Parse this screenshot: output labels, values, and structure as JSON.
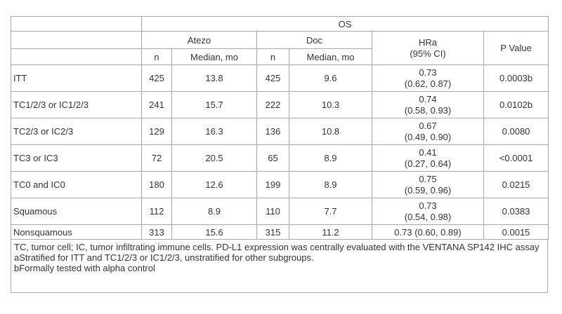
{
  "header": {
    "os": "OS",
    "atezo": "Atezo",
    "doc": "Doc",
    "hr_line1": "HRa",
    "hr_line2": "(95% CI)",
    "p_value": "P Value",
    "n1": "n",
    "median1": "Median, mo",
    "n2": "n",
    "median2": "Median, mo"
  },
  "rows": [
    {
      "label": "ITT",
      "atezo_n": "425",
      "atezo_median": "13.8",
      "doc_n": "425",
      "doc_median": "9.6",
      "hr": "0.73",
      "ci": "(0.62, 0.87)",
      "p": "0.0003b"
    },
    {
      "label": "TC1/2/3 or IC1/2/3",
      "atezo_n": "241",
      "atezo_median": "15.7",
      "doc_n": "222",
      "doc_median": "10.3",
      "hr": "0.74",
      "ci": "(0.58, 0.93)",
      "p": "0.0102b"
    },
    {
      "label": "TC2/3 or IC2/3",
      "atezo_n": "129",
      "atezo_median": "16.3",
      "doc_n": "136",
      "doc_median": "10.8",
      "hr": "0.67",
      "ci": "(0.49, 0.90)",
      "p": "0.0080"
    },
    {
      "label": "TC3 or IC3",
      "atezo_n": "72",
      "atezo_median": "20.5",
      "doc_n": "65",
      "doc_median": "8.9",
      "hr": "0.41",
      "ci": "(0.27, 0.64)",
      "p": "<0.0001"
    },
    {
      "label": "TC0 and IC0",
      "atezo_n": "180",
      "atezo_median": "12.6",
      "doc_n": "199",
      "doc_median": "8.9",
      "hr": "0.75",
      "ci": "(0.59, 0.96)",
      "p": "0.0215"
    },
    {
      "label": "Squamous",
      "atezo_n": "112",
      "atezo_median": "8.9",
      "doc_n": "110",
      "doc_median": "7.7",
      "hr": "0.73",
      "ci": "(0.54, 0.98)",
      "p": "0.0383"
    }
  ],
  "last_row": {
    "label": "Nonsquamous",
    "atezo_n": "313",
    "atezo_median": "15.6",
    "doc_n": "315",
    "doc_median": "11.2",
    "hr_ci": "0.73 (0.60, 0.89)",
    "p": "0.0015"
  },
  "footnotes": [
    "TC, tumor cell; IC, tumor infiltrating immune cells. PD-L1 expression was centrally evaluated with the VENTANA SP142 IHC assay",
    "aStratified for ITT and TC1/2/3 or IC1/2/3, unstratified for other subgroups.",
    "bFormally tested with alpha control"
  ]
}
